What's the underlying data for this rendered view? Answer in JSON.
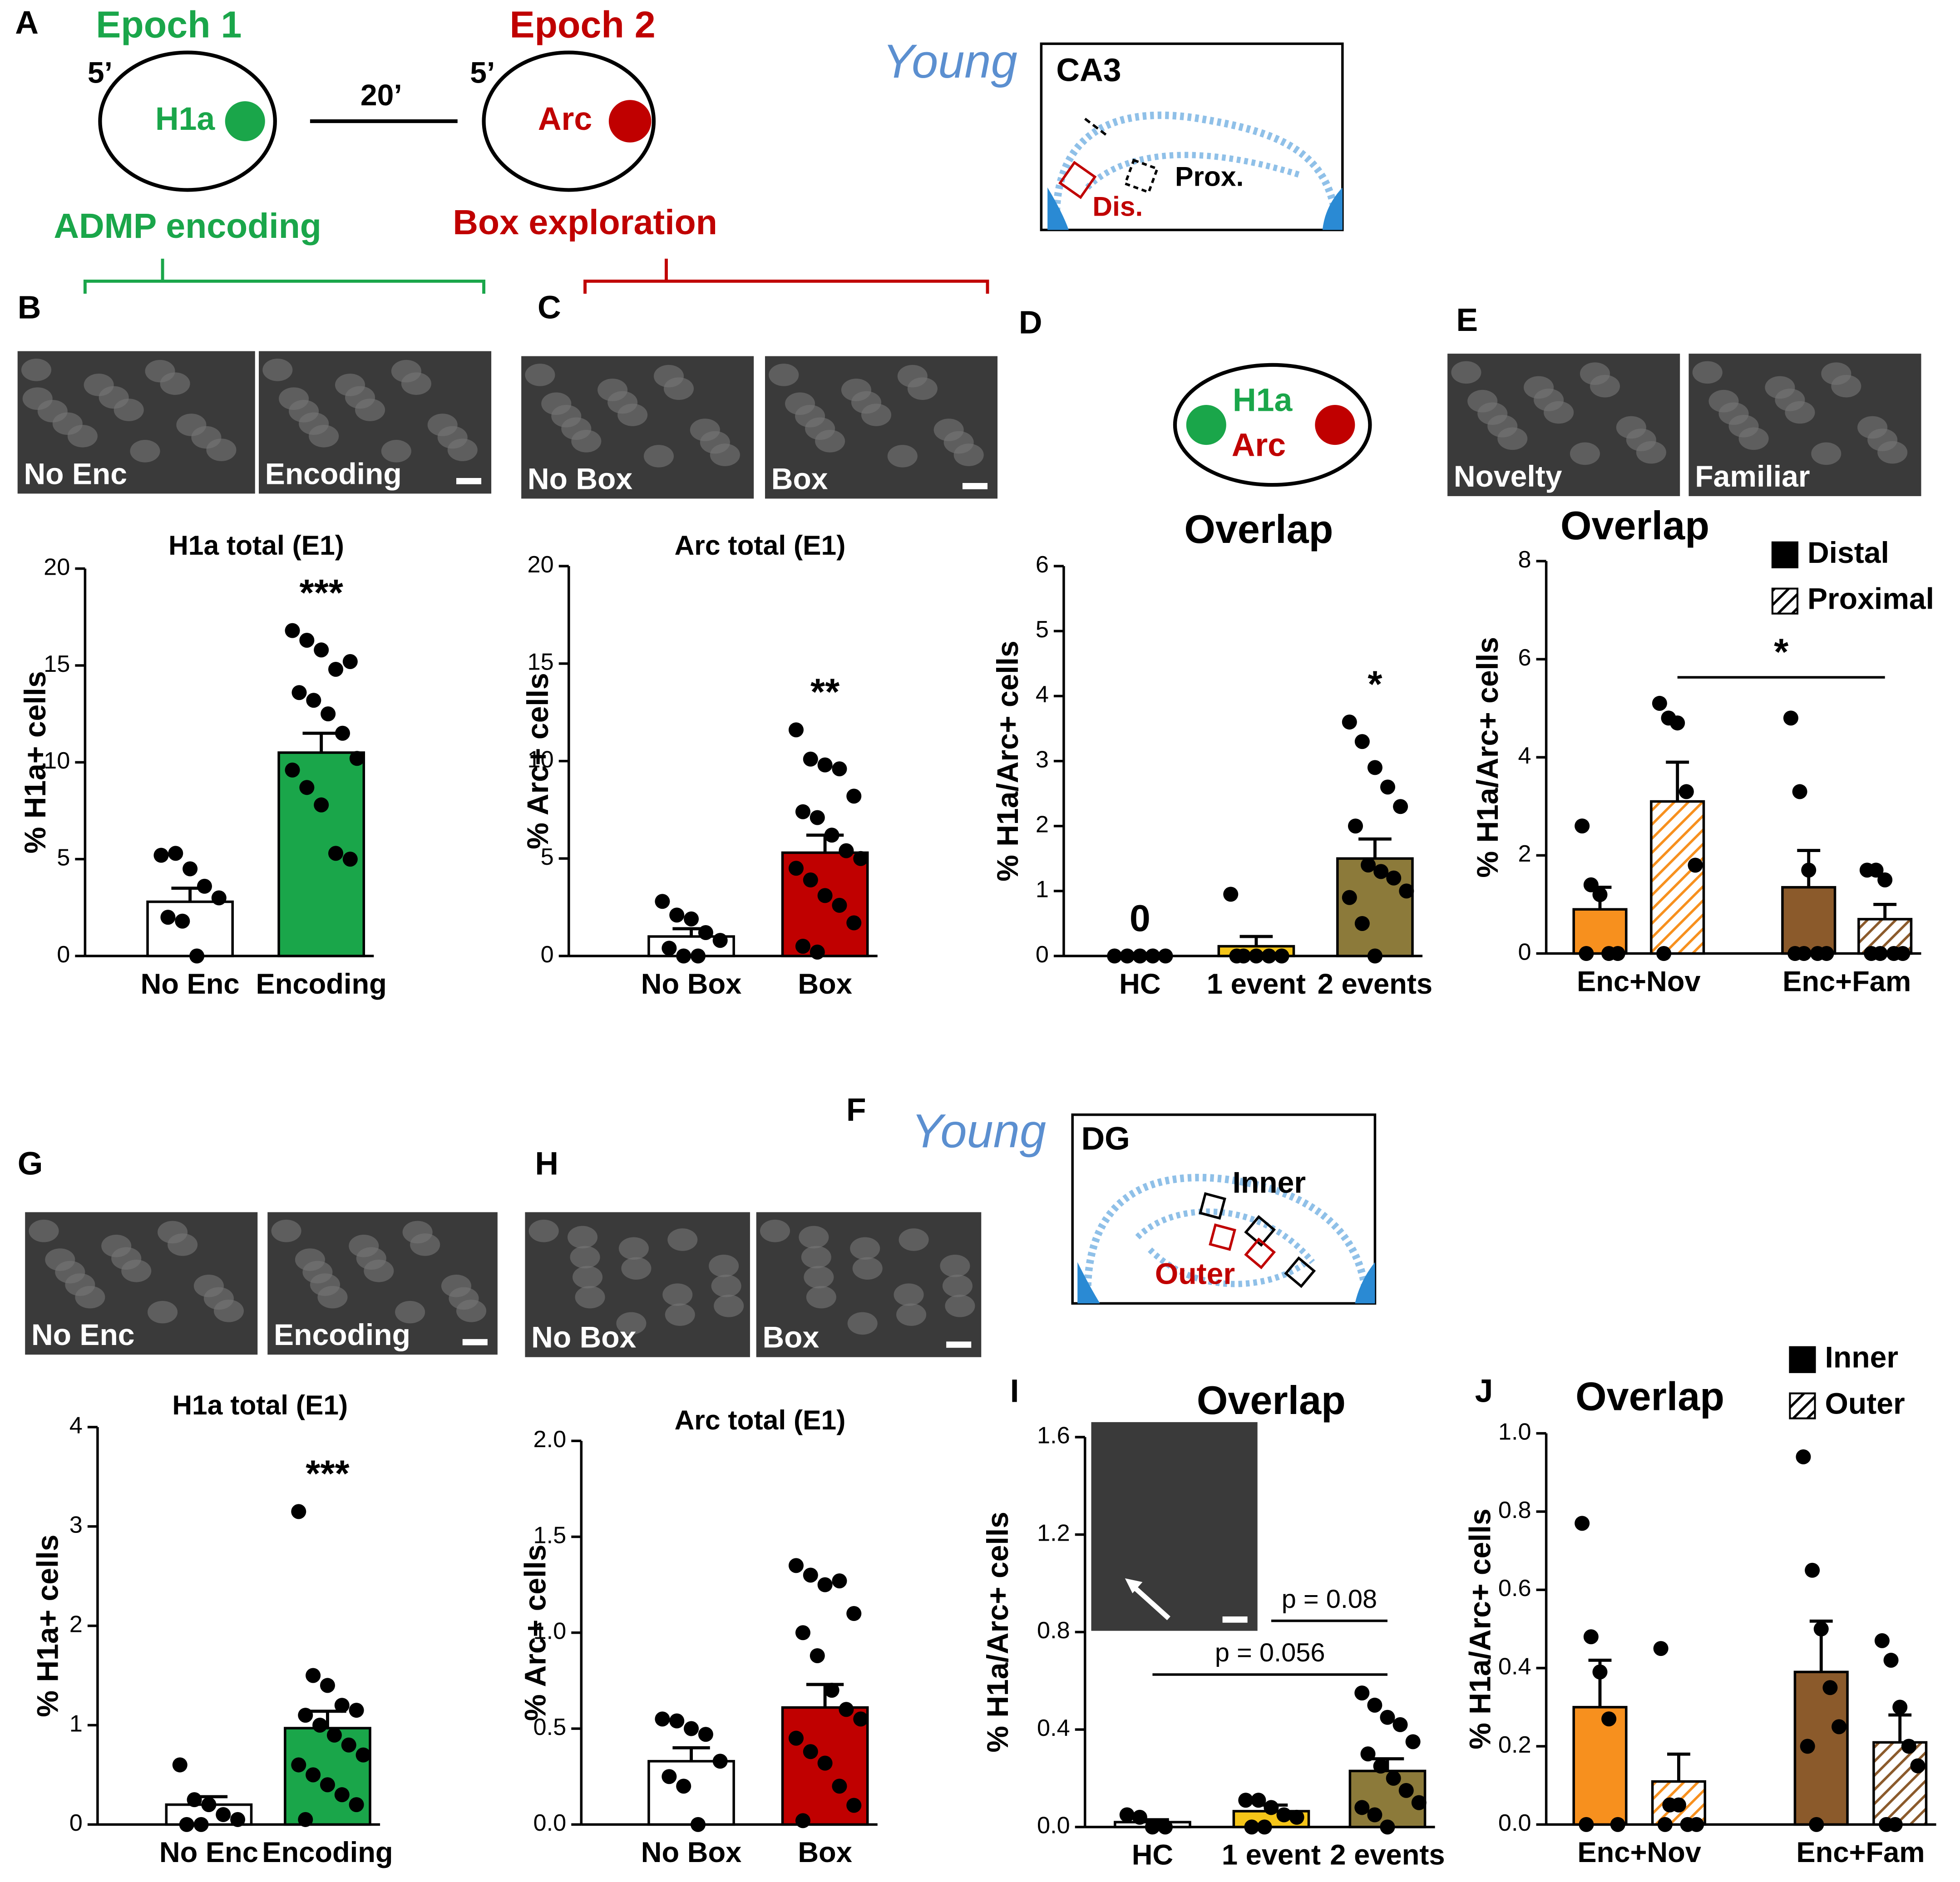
{
  "figure": {
    "panel_letters": [
      "A",
      "B",
      "C",
      "D",
      "E",
      "F",
      "G",
      "H",
      "I",
      "J"
    ],
    "schematic_A": {
      "epoch1": "Epoch 1",
      "dur1": "5’",
      "gene1": "H1a",
      "interval": "20’",
      "epoch2": "Epoch 2",
      "dur2": "5’",
      "gene2": "Arc",
      "task1": "ADMP encoding",
      "task2": "Box exploration"
    },
    "atlas_ca3": {
      "age": "Young",
      "region": "CA3",
      "proximal": "Prox.",
      "distal": "Dis."
    },
    "schematic_D": {
      "gene1": "H1a",
      "gene2": "Arc"
    },
    "atlas_dg": {
      "age": "Young",
      "region": "DG",
      "inner": "Inner",
      "outer": "Outer"
    },
    "micrographs": {
      "B": [
        "No Enc",
        "Encoding"
      ],
      "C": [
        "No Box",
        "Box"
      ],
      "E": [
        "Novelty",
        "Familiar"
      ],
      "G": [
        "No Enc",
        "Encoding"
      ],
      "H": [
        "No Box",
        "Box"
      ]
    }
  },
  "chart_data": [
    {
      "type": "bar",
      "title": "H1a total (E1)",
      "y_label": "% H1a+ cells",
      "categories": [
        "No Enc",
        "Encoding"
      ],
      "values": [
        2.8,
        10.5
      ],
      "errors": [
        0.7,
        1.0
      ],
      "points": [
        [
          5.2,
          5.3,
          4.5,
          3.6,
          3.0,
          2.0,
          1.8,
          0
        ],
        [
          16.8,
          16.3,
          15.8,
          14.8,
          15.2,
          13.6,
          13.2,
          12.5,
          11.5,
          10.2,
          9.6,
          8.7,
          7.8,
          5.3,
          5.0
        ]
      ],
      "colors": [
        "#ffffff",
        "#1aa64a"
      ],
      "annotations": [
        null,
        "***"
      ],
      "ylim": [
        0,
        20
      ],
      "yticks": [
        0,
        5,
        10,
        15,
        20
      ]
    },
    {
      "type": "bar",
      "title": "Arc total (E1)",
      "y_label": "% Arc+ cells",
      "categories": [
        "No Box",
        "Box"
      ],
      "values": [
        1.0,
        5.3
      ],
      "errors": [
        0.4,
        0.9
      ],
      "points": [
        [
          2.8,
          2.1,
          1.9,
          1.2,
          0.8,
          0.4,
          0,
          0
        ],
        [
          11.6,
          10.1,
          9.8,
          9.6,
          8.2,
          7.4,
          7.1,
          6.2,
          5.4,
          5.0,
          4.5,
          3.9,
          3.1,
          2.6,
          1.7,
          0.5,
          0.2
        ]
      ],
      "colors": [
        "#ffffff",
        "#c00000"
      ],
      "annotations": [
        null,
        "**"
      ],
      "ylim": [
        0,
        20
      ],
      "yticks": [
        0,
        5,
        10,
        15,
        20
      ]
    },
    {
      "type": "bar",
      "title": "Overlap",
      "y_label": "% H1a/Arc+ cells",
      "categories": [
        "HC",
        "1 event",
        "2 events"
      ],
      "values": [
        0,
        0.15,
        1.5
      ],
      "errors": [
        0,
        0.15,
        0.3
      ],
      "points": [
        [
          0,
          0,
          0,
          0,
          0
        ],
        [
          0.95,
          0,
          0,
          0,
          0,
          0
        ],
        [
          3.6,
          3.3,
          2.9,
          2.6,
          2.3,
          2.0,
          1.4,
          1.3,
          1.2,
          1.0,
          0.9,
          0.5,
          0
        ]
      ],
      "colors": [
        "#ffffff",
        "#f5c518",
        "#8c7a3a"
      ],
      "annotations": [
        "0",
        null,
        "*"
      ],
      "ylim": [
        0,
        6
      ],
      "yticks": [
        0,
        1,
        2,
        3,
        4,
        5,
        6
      ]
    },
    {
      "type": "grouped_bar",
      "title": "Overlap",
      "y_label": "% H1a/Arc+ cells",
      "categories": [
        "Enc+Nov",
        "Enc+Fam"
      ],
      "colors": [
        "#f7901e",
        "#8b5a2b"
      ],
      "legend_color": "#000000",
      "series": [
        {
          "name": "Distal",
          "pattern": "solid",
          "values": [
            0.9,
            1.35
          ],
          "errors": [
            0.45,
            0.75
          ],
          "points": [
            [
              2.6,
              1.4,
              1.2,
              0,
              0,
              0
            ],
            [
              4.8,
              3.3,
              1.7,
              0,
              0,
              0,
              0
            ]
          ]
        },
        {
          "name": "Proximal",
          "pattern": "hatch",
          "values": [
            3.1,
            0.7
          ],
          "errors": [
            0.8,
            0.3
          ],
          "points": [
            [
              5.1,
              4.8,
              4.7,
              3.3,
              1.8,
              0
            ],
            [
              1.7,
              1.7,
              1.5,
              0,
              0,
              0,
              0
            ]
          ]
        }
      ],
      "comparisons": [
        {
          "label": "*"
        }
      ],
      "ylim": [
        0,
        8
      ],
      "yticks": [
        0,
        2,
        4,
        6,
        8
      ]
    },
    {
      "type": "bar",
      "title": "H1a total (E1)",
      "y_label": "% H1a+ cells",
      "categories": [
        "No Enc",
        "Encoding"
      ],
      "values": [
        0.2,
        0.97
      ],
      "errors": [
        0.08,
        0.17
      ],
      "points": [
        [
          0.6,
          0.25,
          0.2,
          0.1,
          0.05,
          0,
          0
        ],
        [
          3.15,
          1.5,
          1.4,
          1.2,
          1.15,
          1.1,
          1.0,
          0.9,
          0.8,
          0.7,
          0.6,
          0.5,
          0.4,
          0.3,
          0.2,
          0.05
        ]
      ],
      "colors": [
        "#ffffff",
        "#1aa64a"
      ],
      "annotations": [
        null,
        "***"
      ],
      "ylim": [
        0,
        4
      ],
      "yticks": [
        0,
        1,
        2,
        3,
        4
      ]
    },
    {
      "type": "bar",
      "title": "Arc total (E1)",
      "y_label": "% Arc+ cells",
      "categories": [
        "No Box",
        "Box"
      ],
      "values": [
        0.33,
        0.61
      ],
      "errors": [
        0.07,
        0.12
      ],
      "points": [
        [
          0.55,
          0.54,
          0.5,
          0.47,
          0.33,
          0.25,
          0.2,
          0
        ],
        [
          1.35,
          1.3,
          1.25,
          1.27,
          1.1,
          1.0,
          0.88,
          0.7,
          0.6,
          0.55,
          0.45,
          0.38,
          0.32,
          0.2,
          0.1,
          0.02
        ]
      ],
      "colors": [
        "#ffffff",
        "#c00000"
      ],
      "annotations": [
        null,
        null
      ],
      "ylim": [
        0,
        2
      ],
      "yticks": [
        {
          "value": 0,
          "label": "0.0"
        },
        0.5,
        {
          "value": 1,
          "label": "1.0"
        },
        1.5,
        {
          "value": 2,
          "label": "2.0"
        }
      ]
    },
    {
      "type": "bar",
      "title": "Overlap",
      "y_label": "% H1a/Arc+ cells",
      "categories": [
        "HC",
        "1 event",
        "2 events"
      ],
      "values": [
        0.02,
        0.065,
        0.23
      ],
      "errors": [
        0.01,
        0.025,
        0.05
      ],
      "points": [
        [
          0.05,
          0.04,
          0,
          0
        ],
        [
          0.11,
          0.11,
          0.08,
          0.05,
          0.04,
          0,
          0
        ],
        [
          0.55,
          0.5,
          0.45,
          0.42,
          0.35,
          0.3,
          0.25,
          0.2,
          0.15,
          0.1,
          0.08,
          0.05,
          0
        ]
      ],
      "colors": [
        "#ffffff",
        "#f5c518",
        "#8c7a3a"
      ],
      "annotations": [
        null,
        null,
        null
      ],
      "comparisons": [
        {
          "label": "p = 0.08"
        },
        {
          "label": "p = 0.056"
        }
      ],
      "ylim": [
        0,
        1.6
      ],
      "yticks": [
        {
          "value": 0,
          "label": "0.0"
        },
        0.4,
        0.8,
        1.2,
        1.6
      ]
    },
    {
      "type": "grouped_bar",
      "title": "Overlap",
      "y_label": "% H1a/Arc+ cells",
      "categories": [
        "Enc+Nov",
        "Enc+Fam"
      ],
      "colors": [
        "#f7901e",
        "#8b5a2b"
      ],
      "legend_color": "#000000",
      "series": [
        {
          "name": "Inner",
          "pattern": "solid",
          "values": [
            0.3,
            0.39
          ],
          "errors": [
            0.12,
            0.13
          ],
          "points": [
            [
              0.77,
              0.48,
              0.39,
              0.27,
              0,
              0
            ],
            [
              0.94,
              0.65,
              0.5,
              0.35,
              0.25,
              0.2,
              0
            ]
          ]
        },
        {
          "name": "Outer",
          "pattern": "hatch",
          "values": [
            0.11,
            0.21
          ],
          "errors": [
            0.07,
            0.07
          ],
          "points": [
            [
              0.45,
              0.05,
              0.05,
              0,
              0,
              0
            ],
            [
              0.47,
              0.42,
              0.3,
              0.2,
              0.15,
              0,
              0
            ]
          ]
        }
      ],
      "ylim": [
        0,
        1
      ],
      "yticks": [
        {
          "value": 0,
          "label": "0.0"
        },
        0.2,
        0.4,
        0.6,
        0.8,
        {
          "value": 1,
          "label": "1.0"
        }
      ]
    }
  ]
}
